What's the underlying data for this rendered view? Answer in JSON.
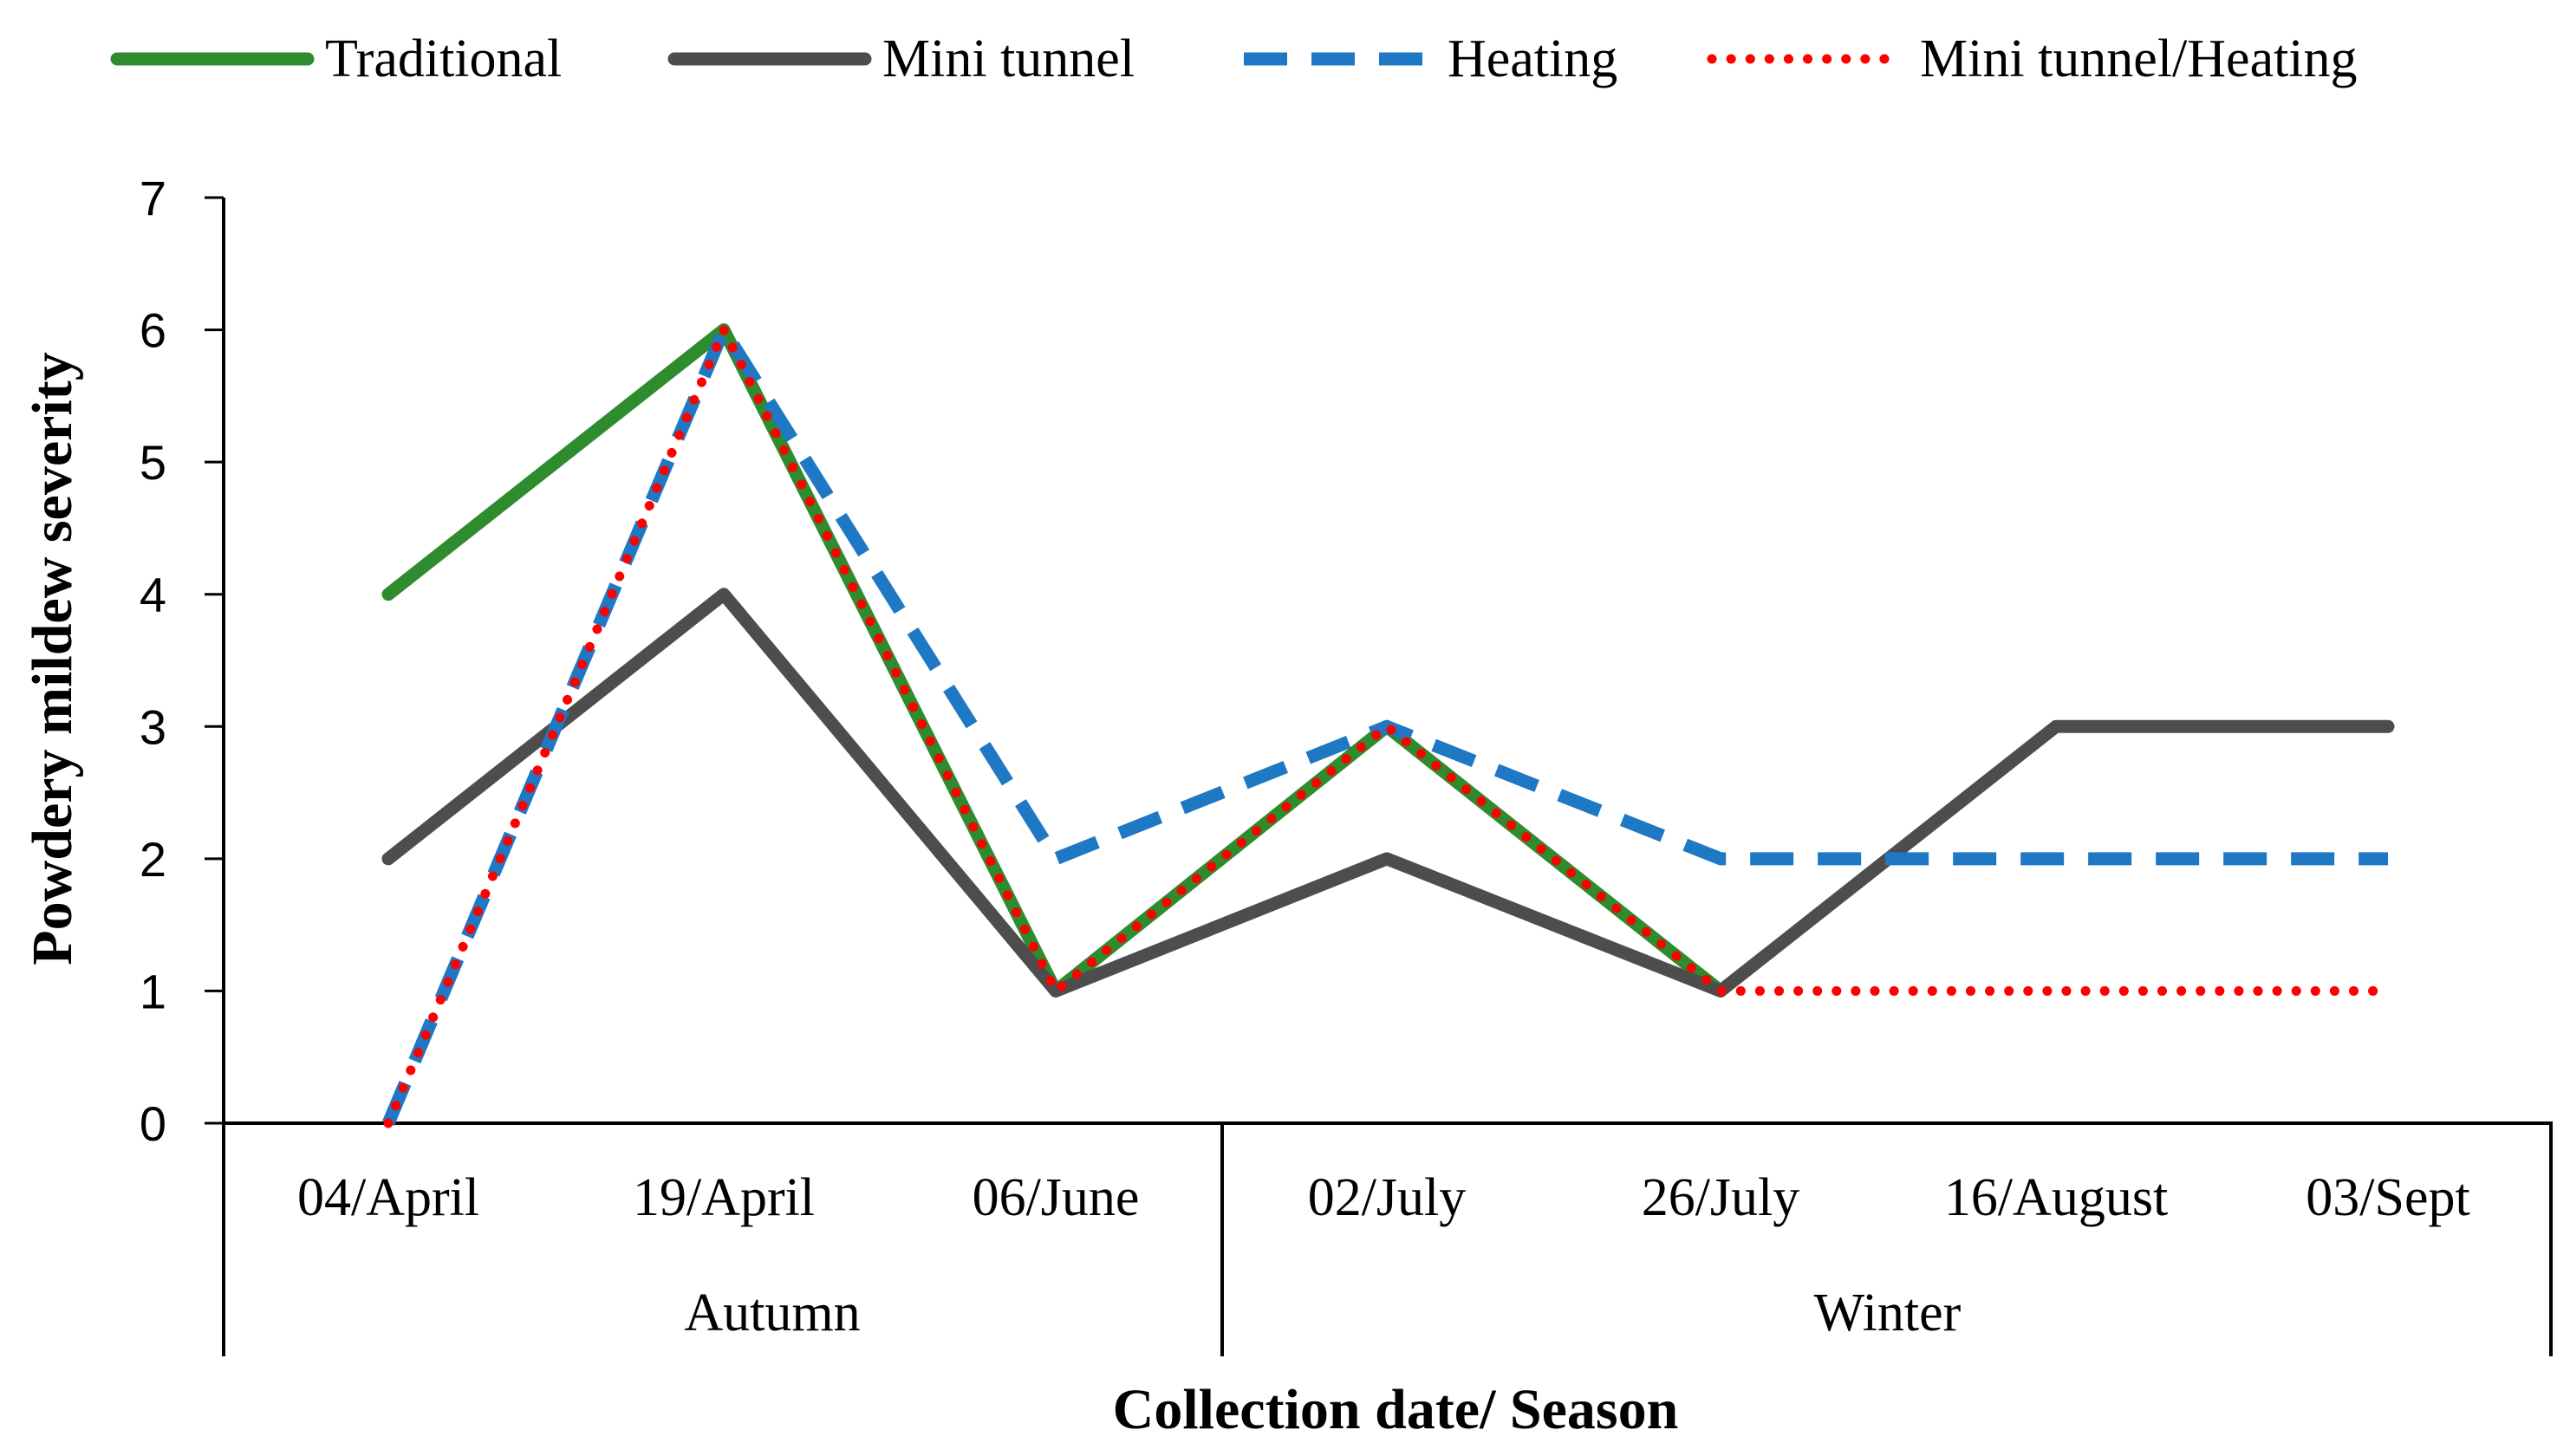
{
  "chart_data": {
    "type": "line",
    "title": "",
    "xlabel": "Collection date/ Season",
    "ylabel": "Powdery mildew severity",
    "ylim": [
      0,
      7
    ],
    "yticks": [
      0,
      1,
      2,
      3,
      4,
      5,
      6,
      7
    ],
    "grid": false,
    "legend_position": "top",
    "categories": [
      "04/April",
      "19/April",
      "06/June",
      "02/July",
      "26/July",
      "16/August",
      "03/Sept"
    ],
    "groups": [
      {
        "name": "Autumn",
        "start": 0,
        "end": 2
      },
      {
        "name": "Winter",
        "start": 3,
        "end": 6
      }
    ],
    "series": [
      {
        "name": "Traditional",
        "color": "#2e8b2e",
        "style": "solid",
        "values": [
          4,
          6,
          1,
          3,
          1,
          null,
          null
        ]
      },
      {
        "name": "Mini tunnel",
        "color": "#4d4d4d",
        "style": "solid",
        "values": [
          2,
          4,
          1,
          2,
          1,
          3,
          3
        ]
      },
      {
        "name": "Heating",
        "color": "#1f78c4",
        "style": "dashed",
        "values": [
          0,
          6,
          2,
          3,
          2,
          2,
          2
        ]
      },
      {
        "name": "Mini tunnel/Heating",
        "color": "#ff0000",
        "style": "dotted",
        "values": [
          0,
          6,
          1,
          3,
          1,
          1,
          1
        ]
      }
    ]
  }
}
